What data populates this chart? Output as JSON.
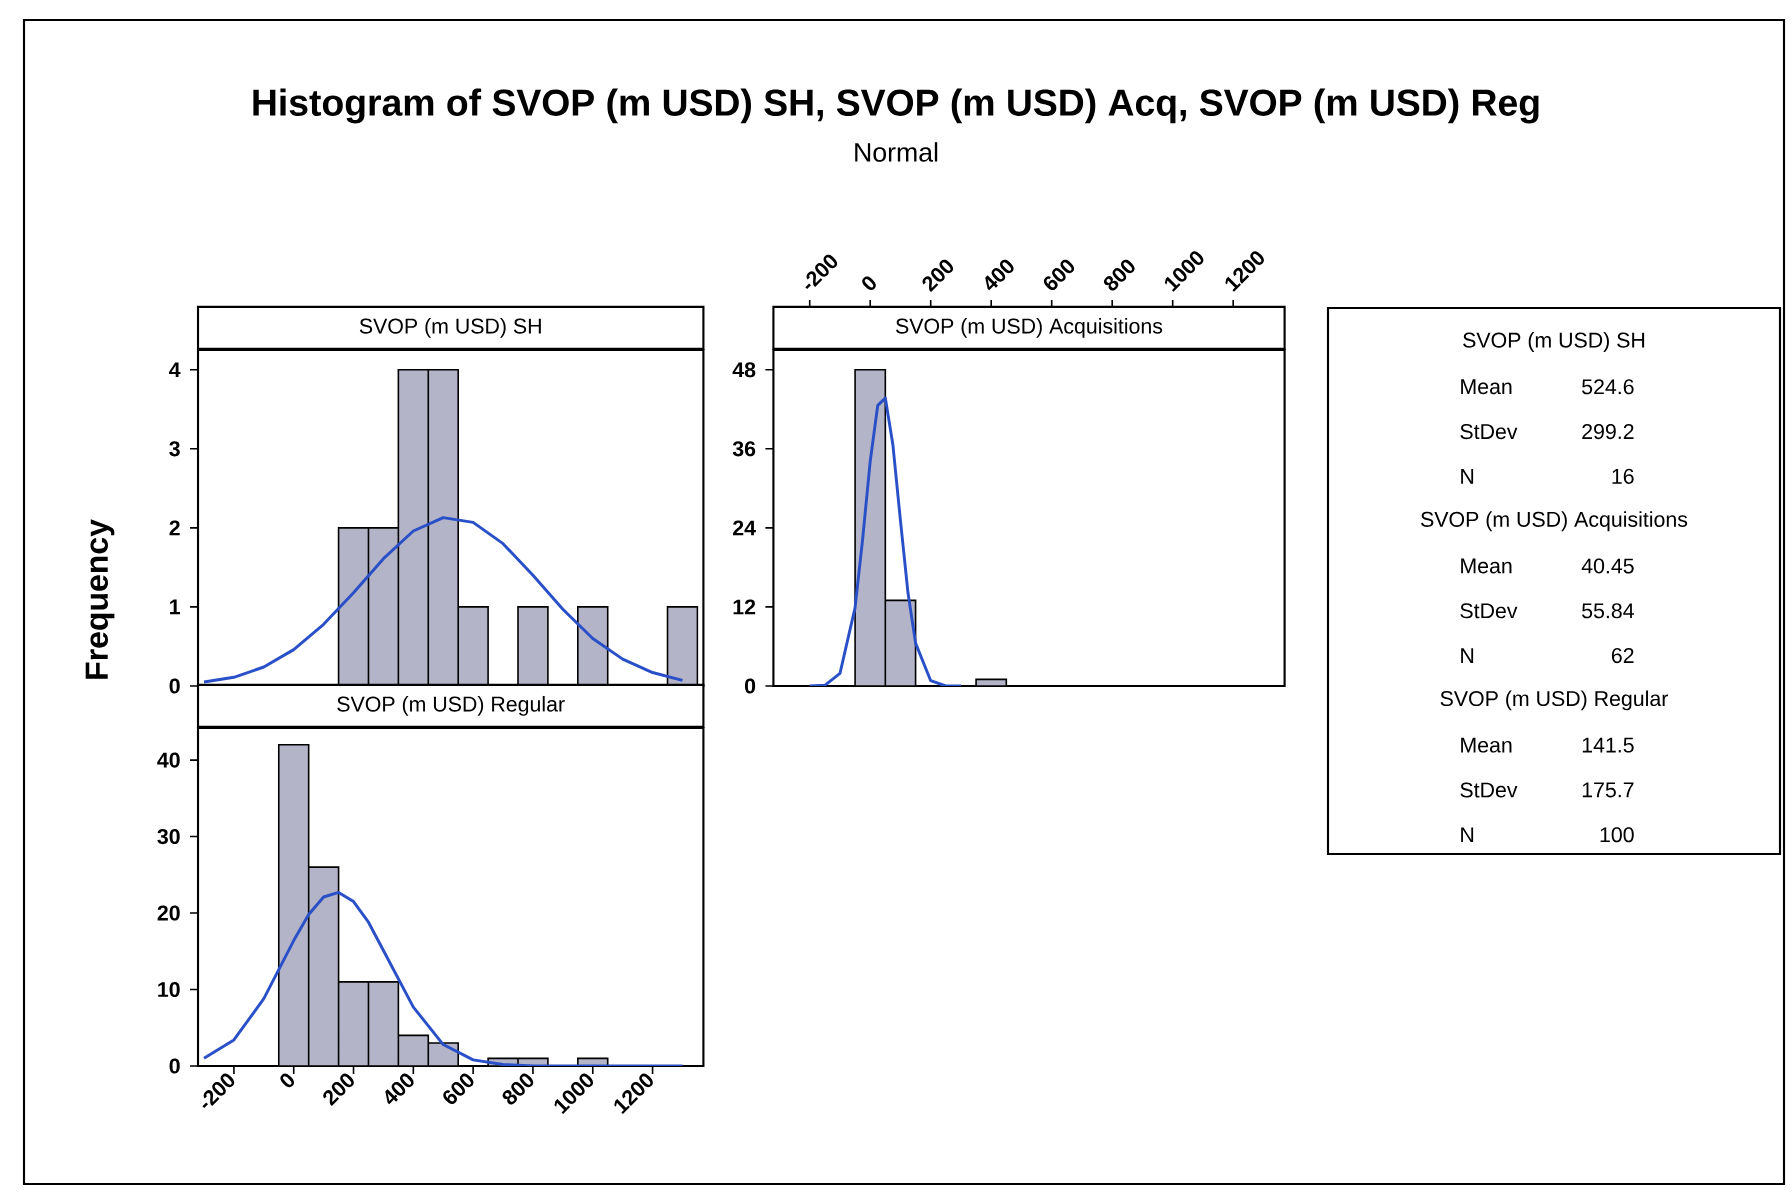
{
  "chart_data": [
    {
      "type": "other",
      "title": "Histogram of SVOP (m USD) SH, SVOP (m USD) Acq, SVOP (m USD) Reg",
      "subtitle": "Normal",
      "annotations": [
        "SVOP (m USD) SH",
        "Mean",
        "524.6",
        "StDev",
        "299.2",
        "N",
        "16",
        "SVOP (m USD) Acquisitions",
        "Mean",
        "40.45",
        "StDev",
        "55.84",
        "N",
        "62",
        "SVOP (m USD) Regular",
        "Mean",
        "141.5",
        "StDev",
        "175.7",
        "N",
        "100"
      ]
    },
    {
      "type": "histogram",
      "title": "SVOP (m USD) SH",
      "ylabel": "Frequency",
      "color": "#b4b4c8",
      "bins": [
        -50,
        50,
        150,
        250,
        350,
        450,
        550,
        650,
        750,
        850,
        950,
        1050,
        1150,
        1250,
        1350
      ],
      "values": [
        0,
        0,
        2,
        2,
        4,
        4,
        1,
        0,
        1,
        0,
        1,
        0,
        0,
        1
      ],
      "series": [
        {
          "type": "line",
          "color": "#2a50c8",
          "x": [
            -300,
            -200,
            -100,
            0,
            100,
            200,
            300,
            400,
            500,
            600,
            700,
            800,
            900,
            1000,
            1100,
            1200,
            1300
          ],
          "values": [
            0.05,
            0.11,
            0.24,
            0.46,
            0.78,
            1.18,
            1.61,
            1.96,
            2.13,
            2.07,
            1.8,
            1.4,
            0.97,
            0.6,
            0.34,
            0.17,
            0.07
          ]
        }
      ],
      "xlim": [
        -320,
        1370
      ],
      "ylim": [
        0,
        4.25
      ],
      "yticks": [
        0,
        1,
        2,
        3,
        4
      ],
      "tick_labels": "y"
    },
    {
      "type": "histogram",
      "title": "SVOP (m USD) Acquisitions",
      "color": "#b4b4c8",
      "bins": [
        -50,
        50,
        150,
        250,
        350,
        450,
        550,
        650,
        750,
        850,
        950,
        1050,
        1150,
        1250,
        1350
      ],
      "values": [
        48,
        13,
        0,
        0,
        1,
        0,
        0,
        0,
        0,
        0,
        0,
        0,
        0,
        0
      ],
      "series": [
        {
          "type": "line",
          "color": "#2a50c8",
          "x": [
            -200,
            -150,
            -100,
            -50,
            -25,
            0,
            25,
            50,
            75,
            100,
            125,
            150,
            200,
            250,
            300
          ],
          "values": [
            0,
            0.1,
            1.9,
            11.9,
            22.3,
            34.1,
            42.6,
            43.7,
            36.6,
            25.1,
            14.1,
            6.5,
            0.8,
            0,
            0
          ]
        }
      ],
      "xlim": [
        -320,
        1370
      ],
      "xticks": [
        -200,
        0,
        200,
        400,
        600,
        800,
        1000,
        1200
      ],
      "ylim": [
        0,
        51
      ],
      "yticks": [
        0,
        12,
        24,
        36,
        48
      ]
    },
    {
      "type": "histogram",
      "title": "SVOP (m USD) Regular",
      "color": "#b4b4c8",
      "bins": [
        -50,
        50,
        150,
        250,
        350,
        450,
        550,
        650,
        750,
        850,
        950,
        1050,
        1150,
        1250,
        1350
      ],
      "values": [
        42,
        26,
        11,
        11,
        4,
        3,
        0,
        1,
        1,
        0,
        1,
        0,
        0,
        0
      ],
      "series": [
        {
          "type": "line",
          "color": "#2a50c8",
          "x": [
            -300,
            -200,
            -100,
            0,
            50,
            100,
            150,
            200,
            250,
            300,
            400,
            500,
            600,
            700,
            800,
            1000,
            1300
          ],
          "values": [
            1,
            3.4,
            8.8,
            16.4,
            19.8,
            22.1,
            22.7,
            21.5,
            18.8,
            15.1,
            7.7,
            2.8,
            0.8,
            0.2,
            0,
            0,
            0
          ]
        }
      ],
      "xlim": [
        -320,
        1370
      ],
      "xticks": [
        -200,
        0,
        200,
        400,
        600,
        800,
        1000,
        1200
      ],
      "ylim": [
        0,
        44.2
      ],
      "yticks": [
        0,
        10,
        20,
        30,
        40
      ]
    }
  ]
}
